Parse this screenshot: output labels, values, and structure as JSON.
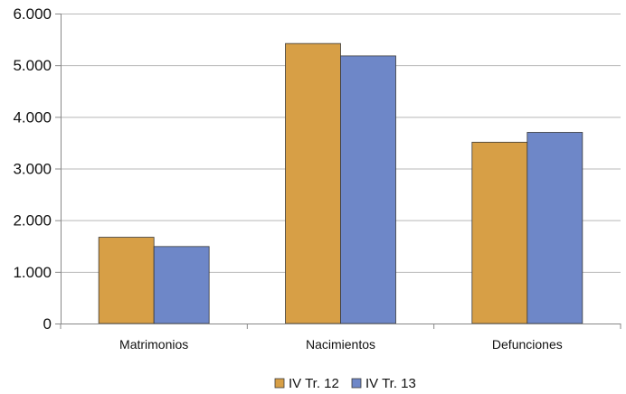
{
  "chart_data": {
    "type": "bar",
    "categories": [
      "Matrimonios",
      "Nacimientos",
      "Defunciones"
    ],
    "series": [
      {
        "name": "IV Tr. 12",
        "values": [
          1670,
          5420,
          3510
        ],
        "color": "#d79f46"
      },
      {
        "name": "IV Tr. 13",
        "values": [
          1490,
          5180,
          3700
        ],
        "color": "#6e87c8"
      }
    ],
    "ylim": [
      0,
      6000
    ],
    "yticks": [
      0,
      1000,
      2000,
      3000,
      4000,
      5000,
      6000
    ],
    "ytick_labels": [
      "0",
      "1.000",
      "2.000",
      "3.000",
      "4.000",
      "5.000",
      "6.000"
    ],
    "grid": true,
    "legend_position": "bottom-center"
  }
}
